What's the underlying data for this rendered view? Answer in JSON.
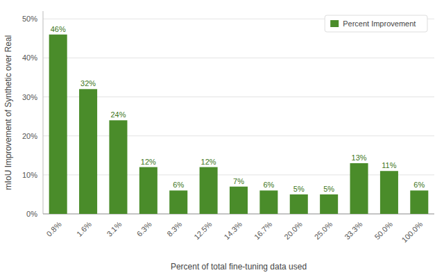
{
  "chart_data": {
    "type": "bar",
    "xlabel": "Percent of total fine-tuning data used",
    "ylabel": "mIoU Improvement of Synthetic over Real",
    "categories": [
      "0.8%",
      "1.6%",
      "3.1%",
      "6.3%",
      "8.3%",
      "12.5%",
      "14.3%",
      "16.7%",
      "20.0%",
      "25.0%",
      "33.3%",
      "50.0%",
      "100.0%"
    ],
    "series": [
      {
        "name": "Percent Improvement",
        "color": "#4a8c2a",
        "values": [
          46,
          32,
          24,
          12,
          6,
          12,
          7,
          6,
          5,
          5,
          13,
          11,
          6
        ],
        "value_labels": [
          "46%",
          "32%",
          "24%",
          "12%",
          "6%",
          "12%",
          "7%",
          "6%",
          "5%",
          "5%",
          "13%",
          "11%",
          "6%"
        ]
      }
    ],
    "ylim": [
      0,
      52
    ],
    "yticks": [
      {
        "value": 0,
        "label": "0%"
      },
      {
        "value": 10,
        "label": "10%"
      },
      {
        "value": 20,
        "label": "20%"
      },
      {
        "value": 30,
        "label": "30%"
      },
      {
        "value": 40,
        "label": "40%"
      },
      {
        "value": 50,
        "label": "50%"
      }
    ],
    "grid": true,
    "legend": "upper right",
    "data_labels": true
  }
}
